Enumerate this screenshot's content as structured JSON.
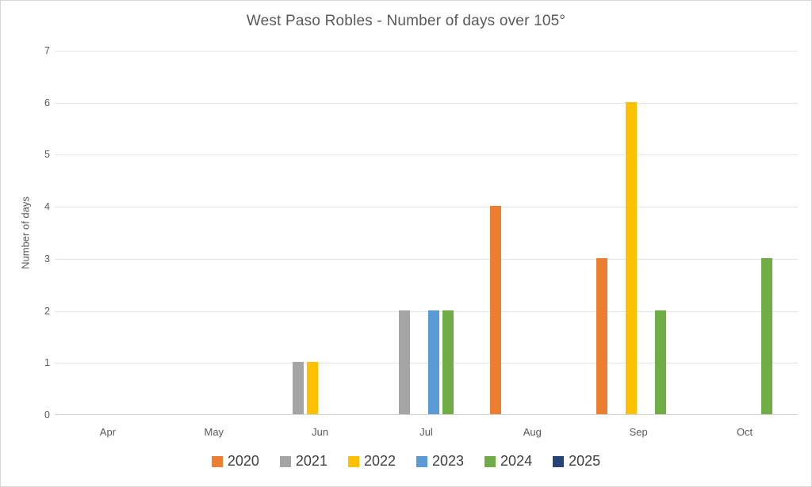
{
  "chart_data": {
    "type": "bar",
    "title": "West Paso Robles - Number of days over 105°",
    "xlabel": "",
    "ylabel": "Number of days",
    "categories": [
      "Apr",
      "May",
      "Jun",
      "Jul",
      "Aug",
      "Sep",
      "Oct"
    ],
    "series": [
      {
        "name": "2020",
        "color": "#ED7D31",
        "values": [
          0,
          0,
          0,
          0,
          4,
          3,
          0
        ]
      },
      {
        "name": "2021",
        "color": "#A5A5A5",
        "values": [
          0,
          0,
          1,
          2,
          0,
          0,
          0
        ]
      },
      {
        "name": "2022",
        "color": "#FFC000",
        "values": [
          0,
          0,
          1,
          0,
          0,
          6,
          0
        ]
      },
      {
        "name": "2023",
        "color": "#5B9BD5",
        "values": [
          0,
          0,
          0,
          2,
          0,
          0,
          0
        ]
      },
      {
        "name": "2024",
        "color": "#70AD47",
        "values": [
          0,
          0,
          0,
          2,
          0,
          2,
          3
        ]
      },
      {
        "name": "2025",
        "color": "#264478",
        "values": [
          0,
          0,
          0,
          0,
          0,
          0,
          0
        ]
      }
    ],
    "ylim": [
      0,
      7
    ],
    "yticks": [
      0,
      1,
      2,
      3,
      4,
      5,
      6,
      7
    ],
    "grid": true,
    "legend_position": "bottom",
    "colors": {
      "title_text": "#595959",
      "axis_text": "#595959",
      "legend_text": "#404040",
      "gridline": "#E4E4E4",
      "axis_line": "#D2D2D2",
      "frame_border": "#D6D6D6",
      "background": "#FFFFFF"
    }
  }
}
